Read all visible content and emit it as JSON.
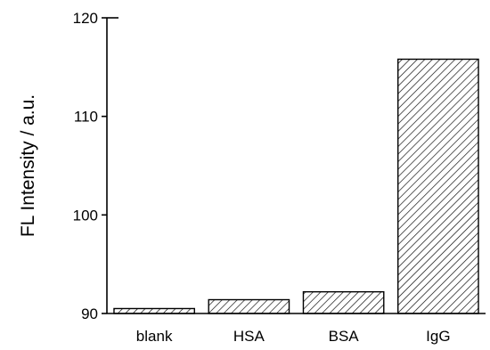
{
  "chart_data": {
    "type": "bar",
    "title": "",
    "xlabel": "",
    "ylabel": "FL Intensity / a.u.",
    "categories": [
      "blank",
      "HSA",
      "BSA",
      "IgG"
    ],
    "values": [
      90.5,
      91.4,
      92.2,
      115.8
    ],
    "ylim": [
      90,
      120
    ],
    "yticks": [
      90,
      100,
      110,
      120
    ],
    "grid": false,
    "legend": "none",
    "bar_fill": "hatched",
    "colors": {
      "bar_stroke": "#000000",
      "hatch": "#000000",
      "background": "#ffffff"
    }
  }
}
